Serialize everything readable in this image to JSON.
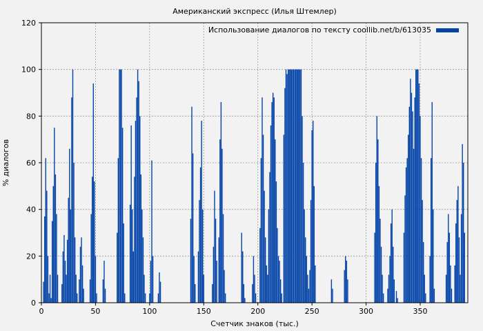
{
  "chart_data": {
    "type": "bar",
    "title": "Американский экспресс (Илья Штемлер)",
    "xlabel": "Счетчик знаков (тыс.)",
    "ylabel": "% диалогов",
    "xlim": [
      0,
      394
    ],
    "ylim": [
      0,
      120
    ],
    "xticks": [
      0,
      50,
      100,
      150,
      200,
      250,
      300,
      350
    ],
    "yticks": [
      0,
      20,
      40,
      60,
      80,
      100,
      120
    ],
    "grid": true,
    "legend_position": "top-right",
    "bar_color": "#0444a8",
    "series": [
      {
        "name": "Использование диалогов по тексту coollib.net/b/613035",
        "points": [
          [
            2,
            9
          ],
          [
            3,
            37
          ],
          [
            4,
            62
          ],
          [
            5,
            48
          ],
          [
            6,
            20
          ],
          [
            7,
            4
          ],
          [
            8,
            12
          ],
          [
            9,
            2
          ],
          [
            10,
            35
          ],
          [
            11,
            50
          ],
          [
            12,
            75
          ],
          [
            13,
            55
          ],
          [
            14,
            38
          ],
          [
            15,
            12
          ],
          [
            19,
            8
          ],
          [
            20,
            22
          ],
          [
            21,
            29
          ],
          [
            22,
            18
          ],
          [
            23,
            12
          ],
          [
            24,
            27
          ],
          [
            25,
            45
          ],
          [
            26,
            66
          ],
          [
            27,
            40
          ],
          [
            28,
            88
          ],
          [
            29,
            100
          ],
          [
            30,
            60
          ],
          [
            31,
            28
          ],
          [
            32,
            12
          ],
          [
            33,
            4
          ],
          [
            35,
            10
          ],
          [
            36,
            24
          ],
          [
            37,
            28
          ],
          [
            38,
            16
          ],
          [
            39,
            6
          ],
          [
            45,
            10
          ],
          [
            46,
            38
          ],
          [
            47,
            54
          ],
          [
            48,
            94
          ],
          [
            49,
            52
          ],
          [
            50,
            20
          ],
          [
            51,
            4
          ],
          [
            57,
            10
          ],
          [
            58,
            18
          ],
          [
            59,
            6
          ],
          [
            70,
            30
          ],
          [
            71,
            62
          ],
          [
            72,
            100
          ],
          [
            73,
            100
          ],
          [
            74,
            100
          ],
          [
            75,
            75
          ],
          [
            76,
            34
          ],
          [
            77,
            4
          ],
          [
            82,
            42
          ],
          [
            83,
            76
          ],
          [
            84,
            40
          ],
          [
            85,
            22
          ],
          [
            86,
            54
          ],
          [
            87,
            78
          ],
          [
            88,
            88
          ],
          [
            89,
            100
          ],
          [
            90,
            95
          ],
          [
            91,
            80
          ],
          [
            92,
            55
          ],
          [
            93,
            40
          ],
          [
            94,
            28
          ],
          [
            95,
            12
          ],
          [
            96,
            4
          ],
          [
            100,
            4
          ],
          [
            101,
            18
          ],
          [
            102,
            61
          ],
          [
            103,
            20
          ],
          [
            108,
            4
          ],
          [
            109,
            13
          ],
          [
            110,
            9
          ],
          [
            138,
            36
          ],
          [
            139,
            84
          ],
          [
            140,
            64
          ],
          [
            141,
            20
          ],
          [
            142,
            8
          ],
          [
            145,
            22
          ],
          [
            146,
            44
          ],
          [
            147,
            58
          ],
          [
            148,
            78
          ],
          [
            149,
            40
          ],
          [
            150,
            12
          ],
          [
            158,
            8
          ],
          [
            159,
            24
          ],
          [
            160,
            48
          ],
          [
            161,
            36
          ],
          [
            162,
            18
          ],
          [
            164,
            28
          ],
          [
            165,
            70
          ],
          [
            166,
            86
          ],
          [
            167,
            66
          ],
          [
            168,
            38
          ],
          [
            169,
            14
          ],
          [
            170,
            4
          ],
          [
            185,
            30
          ],
          [
            186,
            22
          ],
          [
            187,
            8
          ],
          [
            188,
            2
          ],
          [
            195,
            8
          ],
          [
            196,
            20
          ],
          [
            197,
            12
          ],
          [
            198,
            4
          ],
          [
            202,
            32
          ],
          [
            203,
            62
          ],
          [
            204,
            88
          ],
          [
            205,
            72
          ],
          [
            206,
            48
          ],
          [
            207,
            28
          ],
          [
            208,
            16
          ],
          [
            209,
            12
          ],
          [
            210,
            40
          ],
          [
            211,
            56
          ],
          [
            212,
            76
          ],
          [
            213,
            86
          ],
          [
            214,
            90
          ],
          [
            215,
            88
          ],
          [
            216,
            70
          ],
          [
            217,
            52
          ],
          [
            218,
            32
          ],
          [
            219,
            20
          ],
          [
            220,
            18
          ],
          [
            221,
            10
          ],
          [
            222,
            4
          ],
          [
            224,
            72
          ],
          [
            225,
            92
          ],
          [
            226,
            100
          ],
          [
            227,
            98
          ],
          [
            228,
            100
          ],
          [
            229,
            100
          ],
          [
            230,
            100
          ],
          [
            231,
            100
          ],
          [
            232,
            100
          ],
          [
            233,
            100
          ],
          [
            234,
            100
          ],
          [
            235,
            100
          ],
          [
            236,
            100
          ],
          [
            237,
            100
          ],
          [
            238,
            100
          ],
          [
            239,
            100
          ],
          [
            240,
            100
          ],
          [
            241,
            80
          ],
          [
            242,
            60
          ],
          [
            243,
            40
          ],
          [
            244,
            28
          ],
          [
            245,
            20
          ],
          [
            246,
            12
          ],
          [
            247,
            6
          ],
          [
            248,
            14
          ],
          [
            249,
            44
          ],
          [
            250,
            74
          ],
          [
            251,
            78
          ],
          [
            252,
            50
          ],
          [
            253,
            16
          ],
          [
            268,
            10
          ],
          [
            269,
            6
          ],
          [
            280,
            14
          ],
          [
            281,
            20
          ],
          [
            282,
            18
          ],
          [
            283,
            10
          ],
          [
            308,
            30
          ],
          [
            309,
            60
          ],
          [
            310,
            80
          ],
          [
            311,
            70
          ],
          [
            312,
            50
          ],
          [
            313,
            36
          ],
          [
            314,
            24
          ],
          [
            315,
            12
          ],
          [
            316,
            4
          ],
          [
            320,
            6
          ],
          [
            321,
            12
          ],
          [
            322,
            20
          ],
          [
            323,
            34
          ],
          [
            324,
            40
          ],
          [
            325,
            24
          ],
          [
            326,
            10
          ],
          [
            328,
            5
          ],
          [
            329,
            2
          ],
          [
            335,
            30
          ],
          [
            336,
            46
          ],
          [
            337,
            58
          ],
          [
            338,
            62
          ],
          [
            339,
            72
          ],
          [
            340,
            84
          ],
          [
            341,
            96
          ],
          [
            342,
            90
          ],
          [
            343,
            82
          ],
          [
            344,
            66
          ],
          [
            345,
            88
          ],
          [
            346,
            100
          ],
          [
            347,
            100
          ],
          [
            348,
            100
          ],
          [
            349,
            94
          ],
          [
            350,
            80
          ],
          [
            351,
            62
          ],
          [
            352,
            44
          ],
          [
            353,
            26
          ],
          [
            354,
            12
          ],
          [
            355,
            4
          ],
          [
            359,
            20
          ],
          [
            360,
            62
          ],
          [
            361,
            86
          ],
          [
            362,
            40
          ],
          [
            363,
            6
          ],
          [
            374,
            12
          ],
          [
            375,
            26
          ],
          [
            376,
            38
          ],
          [
            377,
            30
          ],
          [
            378,
            16
          ],
          [
            379,
            6
          ],
          [
            382,
            16
          ],
          [
            383,
            34
          ],
          [
            384,
            44
          ],
          [
            385,
            50
          ],
          [
            386,
            28
          ],
          [
            387,
            12
          ],
          [
            388,
            38
          ],
          [
            389,
            68
          ],
          [
            390,
            60
          ],
          [
            391,
            30
          ]
        ]
      }
    ]
  }
}
